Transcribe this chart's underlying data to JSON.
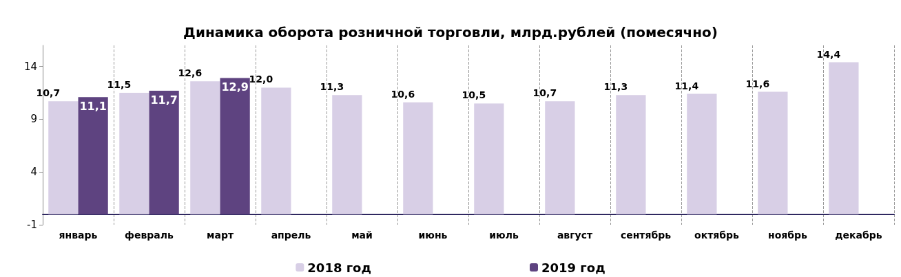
{
  "chart_data": {
    "type": "bar",
    "title": "Динамика оборота розничной торговли, млрд.рублей (помесячно)",
    "categories": [
      "январь",
      "февраль",
      "март",
      "апрель",
      "май",
      "июнь",
      "июль",
      "август",
      "сентябрь",
      "октябрь",
      "ноябрь",
      "декабрь"
    ],
    "series": [
      {
        "name": "2018 год",
        "color": "#d8cfe6",
        "values": [
          10.7,
          11.5,
          12.6,
          12.0,
          11.3,
          10.6,
          10.5,
          10.7,
          11.3,
          11.4,
          11.6,
          14.4
        ],
        "value_labels": [
          "10,7",
          "11,5",
          "12,6",
          "12,0",
          "11,3",
          "10,6",
          "10,5",
          "10,7",
          "11,3",
          "11,4",
          "11,6",
          "14,4"
        ]
      },
      {
        "name": "2019 год",
        "color": "#5e4380",
        "values": [
          11.1,
          11.7,
          12.9,
          null,
          null,
          null,
          null,
          null,
          null,
          null,
          null,
          null
        ],
        "value_labels": [
          "11,1",
          "11,7",
          "12,9",
          null,
          null,
          null,
          null,
          null,
          null,
          null,
          null,
          null
        ]
      }
    ],
    "ylim": [
      -1,
      16
    ],
    "yticks": [
      -1,
      4,
      9,
      14
    ],
    "grid": "x",
    "legend": "bottom"
  }
}
